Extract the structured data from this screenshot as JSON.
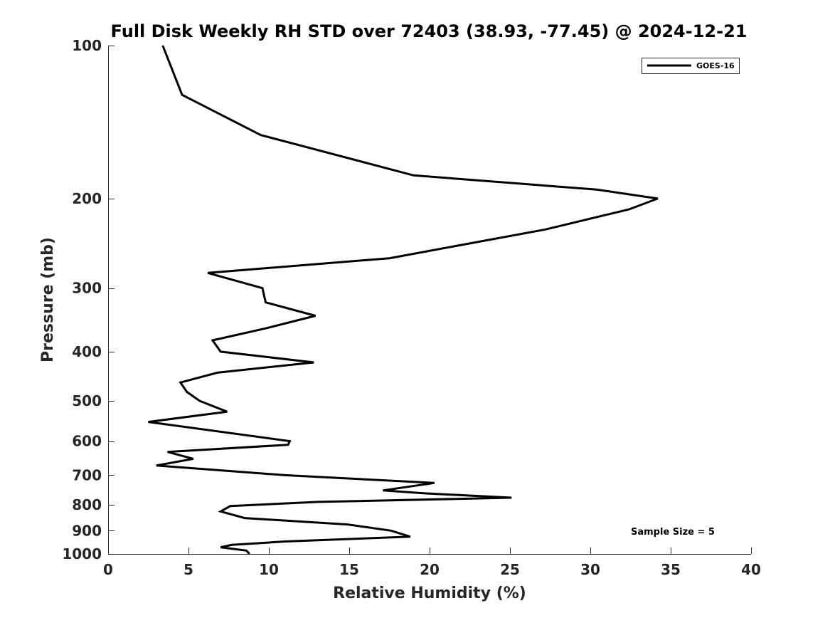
{
  "chart_data": {
    "type": "line",
    "title": "Full Disk Weekly RH STD over 72403 (38.93, -77.45) @ 2024-12-21",
    "xlabel": "Relative Humidity (%)",
    "ylabel": "Pressure (mb)",
    "xlim": [
      0,
      40
    ],
    "ylim": [
      100,
      1000
    ],
    "yscale": "log",
    "y_reversed": true,
    "grid": false,
    "legend_position": "top-right",
    "x_ticks": [
      0,
      5,
      10,
      15,
      20,
      25,
      30,
      35,
      40
    ],
    "y_ticks": [
      100,
      200,
      300,
      400,
      500,
      600,
      700,
      800,
      900,
      1000
    ],
    "annotation": "Sample Size = 5",
    "line_color": "#000000",
    "series": [
      {
        "name": "GOES-16",
        "x": [
          3.4,
          4.6,
          9.5,
          19.0,
          30.4,
          34.2,
          32.4,
          27.2,
          17.5,
          6.2,
          9.6,
          9.8,
          12.9,
          9.8,
          6.5,
          7.0,
          12.8,
          6.8,
          4.5,
          4.9,
          5.7,
          7.4,
          2.5,
          11.3,
          11.2,
          3.7,
          5.3,
          3.0,
          11.0,
          20.3,
          17.1,
          19.7,
          25.1,
          13.1,
          7.6,
          7.0,
          8.5,
          14.9,
          17.6,
          18.8,
          11.0,
          7.7,
          7.0,
          8.6,
          8.8
        ],
        "y": [
          100,
          125,
          150,
          180,
          192,
          200,
          210,
          230,
          262,
          280,
          300,
          320,
          340,
          360,
          380,
          400,
          420,
          440,
          460,
          480,
          500,
          525,
          550,
          600,
          610,
          630,
          650,
          670,
          700,
          725,
          750,
          760,
          775,
          790,
          805,
          825,
          850,
          875,
          900,
          925,
          945,
          960,
          970,
          985,
          1000
        ]
      }
    ]
  }
}
